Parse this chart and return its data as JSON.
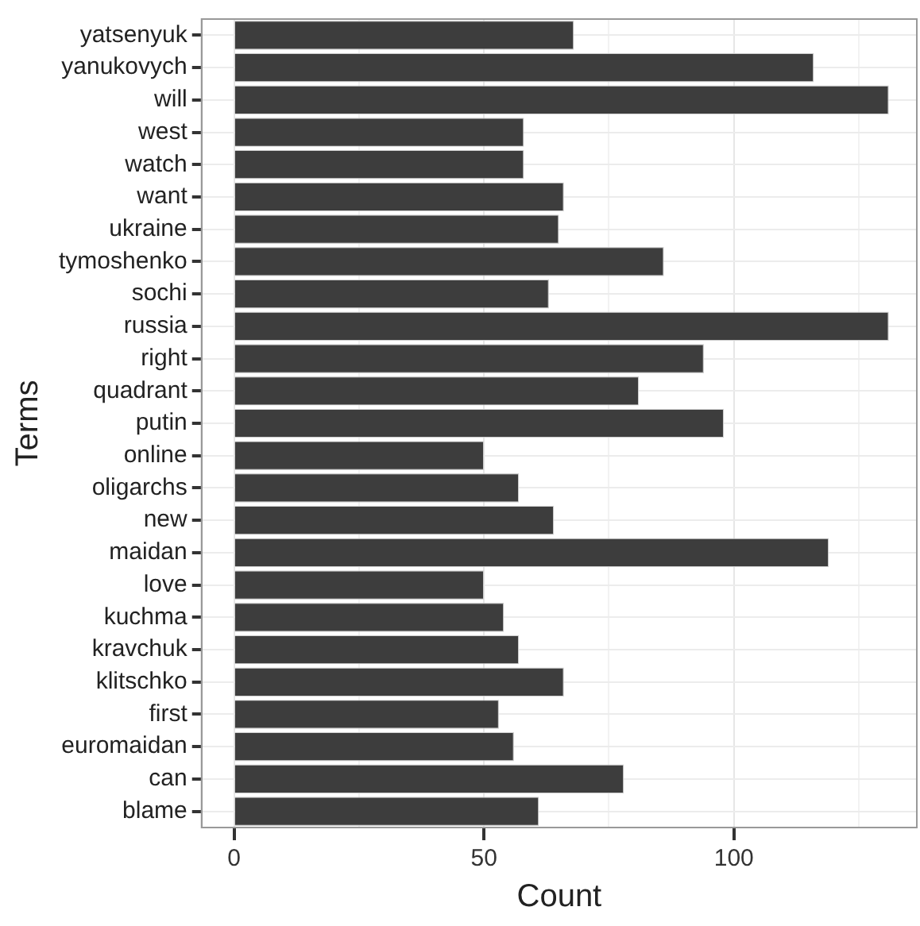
{
  "chart_data": {
    "type": "bar",
    "orientation": "horizontal",
    "xlabel": "Count",
    "ylabel": "Terms",
    "categories": [
      "yatsenyuk",
      "yanukovych",
      "will",
      "west",
      "watch",
      "want",
      "ukraine",
      "tymoshenko",
      "sochi",
      "russia",
      "right",
      "quadrant",
      "putin",
      "online",
      "oligarchs",
      "new",
      "maidan",
      "love",
      "kuchma",
      "kravchuk",
      "klitschko",
      "first",
      "euromaidan",
      "can",
      "blame"
    ],
    "values": [
      68,
      116,
      131,
      58,
      58,
      66,
      65,
      86,
      63,
      131,
      94,
      81,
      98,
      50,
      57,
      64,
      119,
      50,
      54,
      57,
      66,
      53,
      56,
      78,
      61
    ],
    "color": "#3d3d3d",
    "xlim": [
      -6.5,
      136.6
    ],
    "xticks": [
      0,
      {
        "value": 25,
        "label": null
      },
      50,
      {
        "value": 75,
        "label": null
      },
      100,
      {
        "value": 125,
        "label": null
      }
    ],
    "grid": true
  }
}
